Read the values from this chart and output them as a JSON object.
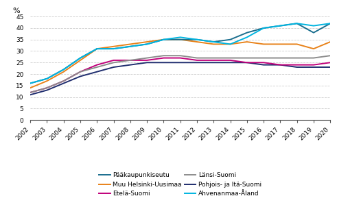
{
  "years": [
    2002,
    2003,
    2004,
    2005,
    2006,
    2007,
    2008,
    2009,
    2010,
    2011,
    2012,
    2013,
    2014,
    2015,
    2016,
    2017,
    2018,
    2019,
    2020
  ],
  "series": {
    "Pääkaupunkiseutu": [
      16,
      18,
      22,
      27,
      31,
      31,
      32,
      33,
      35,
      35,
      35,
      34,
      35,
      38,
      40,
      41,
      42,
      38,
      42
    ],
    "Muu Helsinki-Uusimaa": [
      14,
      17,
      21,
      26,
      31,
      32,
      33,
      34,
      35,
      35,
      34,
      33,
      33,
      34,
      33,
      33,
      33,
      31,
      34
    ],
    "Etelä-Suomi": [
      12,
      14,
      17,
      21,
      24,
      26,
      26,
      26,
      27,
      27,
      26,
      26,
      26,
      25,
      25,
      24,
      24,
      24,
      25
    ],
    "Länsi-Suomi": [
      12,
      14,
      17,
      21,
      23,
      25,
      26,
      27,
      28,
      28,
      27,
      27,
      27,
      27,
      27,
      27,
      27,
      27,
      28
    ],
    "Pohjois- ja Itä-Suomi": [
      11,
      13,
      16,
      19,
      21,
      23,
      24,
      25,
      25,
      25,
      25,
      25,
      25,
      25,
      24,
      24,
      23,
      23,
      23
    ],
    "Ahvenanmaa-Åland": [
      16,
      18,
      22,
      27,
      31,
      31,
      32,
      33,
      35,
      36,
      35,
      34,
      33,
      36,
      40,
      41,
      42,
      41,
      42
    ]
  },
  "colors": {
    "Pääkaupunkiseutu": "#1a6e8e",
    "Muu Helsinki-Uusimaa": "#e8821a",
    "Etelä-Suomi": "#c0007a",
    "Länsi-Suomi": "#8c8c8c",
    "Pohjois- ja Itä-Suomi": "#1f2d6e",
    "Ahvenanmaa-Åland": "#00b4e0"
  },
  "ylim": [
    0,
    45
  ],
  "yticks": [
    0,
    5,
    10,
    15,
    20,
    25,
    30,
    35,
    40,
    45
  ],
  "ylabel": "%",
  "legend_left": [
    "Pääkaupunkiseutu",
    "Etelä-Suomi",
    "Pohjois- ja Itä-Suomi"
  ],
  "legend_right": [
    "Muu Helsinki-Uusimaa",
    "Länsi-Suomi",
    "Ahvenanmaa-Åland"
  ],
  "plot_order": [
    "Pohjois- ja Itä-Suomi",
    "Etelä-Suomi",
    "Länsi-Suomi",
    "Muu Helsinki-Uusimaa",
    "Pääkaupunkiseutu",
    "Ahvenanmaa-Åland"
  ]
}
